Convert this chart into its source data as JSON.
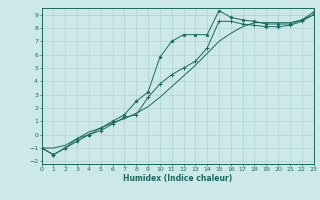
{
  "title": "",
  "xlabel": "Humidex (Indice chaleur)",
  "background_color": "#cce8e8",
  "grid_color": "#aacece",
  "line_color": "#1a6860",
  "xlim": [
    0,
    23
  ],
  "ylim": [
    -2.2,
    9.5
  ],
  "xticks": [
    0,
    1,
    2,
    3,
    4,
    5,
    6,
    7,
    8,
    9,
    10,
    11,
    12,
    13,
    14,
    15,
    16,
    17,
    18,
    19,
    20,
    21,
    22,
    23
  ],
  "yticks": [
    -2,
    -1,
    0,
    1,
    2,
    3,
    4,
    5,
    6,
    7,
    8,
    9
  ],
  "line1_x": [
    0,
    1,
    2,
    3,
    4,
    5,
    6,
    7,
    8,
    9,
    10,
    11,
    12,
    13,
    14,
    15,
    16,
    17,
    18,
    19,
    20,
    21,
    22,
    23
  ],
  "line1_y": [
    -1,
    -1.5,
    -1,
    -0.5,
    0,
    0.5,
    1,
    1.5,
    2.5,
    3.2,
    5.8,
    7.0,
    7.5,
    7.5,
    7.5,
    9.3,
    8.8,
    8.6,
    8.5,
    8.3,
    8.3,
    8.3,
    8.6,
    9.2
  ],
  "line2_x": [
    0,
    1,
    2,
    3,
    4,
    5,
    6,
    7,
    8,
    9,
    10,
    11,
    12,
    13,
    14,
    15,
    16,
    17,
    18,
    19,
    20,
    21,
    22,
    23
  ],
  "line2_y": [
    -1,
    -1.5,
    -1,
    -0.3,
    0,
    0.3,
    0.8,
    1.3,
    1.5,
    2.8,
    3.8,
    4.5,
    5.0,
    5.5,
    6.5,
    8.5,
    8.5,
    8.3,
    8.2,
    8.1,
    8.1,
    8.2,
    8.5,
    9.0
  ],
  "line3_x": [
    0,
    1,
    2,
    3,
    4,
    5,
    6,
    7,
    8,
    9,
    10,
    11,
    12,
    13,
    14,
    15,
    16,
    17,
    18,
    19,
    20,
    21,
    22,
    23
  ],
  "line3_y": [
    -1,
    -1,
    -0.8,
    -0.3,
    0.2,
    0.5,
    0.9,
    1.2,
    1.6,
    2.1,
    2.8,
    3.6,
    4.4,
    5.2,
    6.1,
    7.0,
    7.6,
    8.1,
    8.4,
    8.4,
    8.4,
    8.4,
    8.6,
    9.0
  ]
}
